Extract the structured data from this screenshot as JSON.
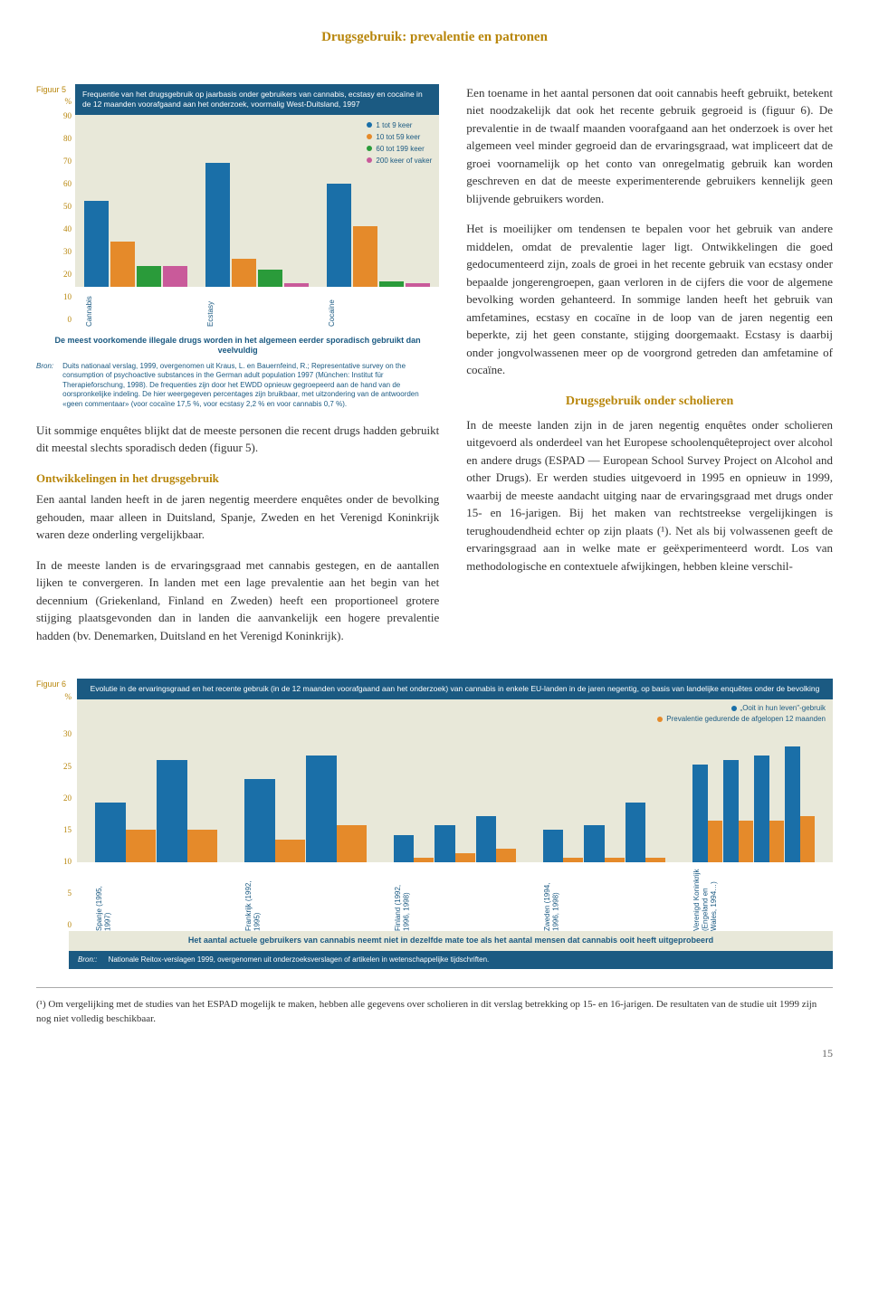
{
  "page_title": "Drugsgebruik: prevalentie en patronen",
  "fig5": {
    "label": "Figuur 5",
    "ylabel": "%",
    "title": "Frequentie van het drugsgebruik op jaarbasis onder gebruikers van cannabis, ecstasy en cocaïne in de 12 maanden voorafgaand aan het onderzoek, voormalig West-Duitsland, 1997",
    "ymax": 100,
    "yticks": [
      "90",
      "80",
      "70",
      "60",
      "50",
      "40",
      "30",
      "20",
      "10",
      "0"
    ],
    "legend": [
      {
        "label": "1 tot 9 keer",
        "color": "#1a6fa8"
      },
      {
        "label": "10 tot 59 keer",
        "color": "#e58a2a"
      },
      {
        "label": "60 tot 199 keer",
        "color": "#2a9b3a"
      },
      {
        "label": "200 keer of vaker",
        "color": "#c95a9a"
      }
    ],
    "groups": [
      {
        "label": "Cannabis",
        "values": [
          50,
          26,
          12,
          12
        ],
        "colors": [
          "#1a6fa8",
          "#e58a2a",
          "#2a9b3a",
          "#c95a9a"
        ]
      },
      {
        "label": "Ecstasy",
        "values": [
          72,
          16,
          10,
          2
        ],
        "colors": [
          "#1a6fa8",
          "#e58a2a",
          "#2a9b3a",
          "#c95a9a"
        ]
      },
      {
        "label": "Cocaïne",
        "values": [
          60,
          35,
          3,
          2
        ],
        "colors": [
          "#1a6fa8",
          "#e58a2a",
          "#2a9b3a",
          "#c95a9a"
        ]
      }
    ],
    "caption": "De meest voorkomende illegale drugs worden in het algemeen eerder sporadisch gebruikt dan veelvuldig",
    "bron_label": "Bron:",
    "bron": "Duits nationaal verslag, 1999, overgenomen uit Kraus, L. en Bauernfeind, R.; Representative survey on the consumption of psychoactive substances in the German adult population 1997 (München: Institut für Therapieforschung, 1998). De frequenties zijn door het EWDD opnieuw gegroepeerd aan de hand van de oorspronkelijke indeling. De hier weergegeven percentages zijn bruikbaar, met uitzondering van de antwoorden «geen commentaar» (voor cocaïne 17,5 %, voor ecstasy 2,2 % en voor cannabis 0,7 %)."
  },
  "left_para_1": "Uit sommige enquêtes blijkt dat de meeste personen die recent drugs hadden gebruikt dit meestal slechts sporadisch deden (figuur 5).",
  "left_subhead": "Ontwikkelingen in het drugsgebruik",
  "left_para_2": "Een aantal landen heeft in de jaren negentig meerdere enquêtes onder de bevolking gehouden, maar alleen in Duitsland, Spanje, Zweden en het Verenigd Koninkrijk waren deze onderling vergelijkbaar.",
  "left_para_3": "In de meeste landen is de ervaringsgraad met cannabis gestegen, en de aantallen lijken te convergeren. In landen met een lage prevalentie aan het begin van het decennium (Griekenland, Finland en Zweden) heeft een proportioneel grotere stijging plaatsgevonden dan in landen die aanvankelijk een hogere prevalentie hadden (bv. Denemarken, Duitsland en het Verenigd Koninkrijk).",
  "right_para_1": "Een toename in het aantal personen dat ooit cannabis heeft gebruikt, betekent niet noodzakelijk dat ook het recente gebruik gegroeid is (figuur 6). De prevalentie in de twaalf maanden voorafgaand aan het onderzoek is over het algemeen veel minder gegroeid dan de ervaringsgraad, wat impliceert dat de groei voornamelijk op het conto van onregelmatig gebruik kan worden geschreven en dat de meeste experimenterende gebruikers kennelijk geen blijvende gebruikers worden.",
  "right_para_2": "Het is moeilijker om tendensen te bepalen voor het gebruik van andere middelen, omdat de prevalentie lager ligt. Ontwikkelingen die goed gedocumenteerd zijn, zoals de groei in het recente gebruik van ecstasy onder bepaalde jongerengroepen, gaan verloren in de cijfers die voor de algemene bevolking worden gehanteerd. In sommige landen heeft het gebruik van amfetamines, ecstasy en cocaïne in de loop van de jaren negentig een beperkte, zij het geen constante, stijging doorgemaakt. Ecstasy is daarbij onder jongvolwassenen meer op de voorgrond getreden dan amfetamine of cocaïne.",
  "right_section_head": "Drugsgebruik onder scholieren",
  "right_para_3": "In de meeste landen zijn in de jaren negentig enquêtes onder scholieren uitgevoerd als onderdeel van het Europese schoolenquêteproject over alcohol en andere drugs (ESPAD — European School Survey Project on Alcohol and other Drugs). Er werden studies uitgevoerd in 1995 en opnieuw in 1999, waarbij de meeste aandacht uitging naar de ervaringsgraad met drugs onder 15- en 16-jarigen. Bij het maken van rechtstreekse vergelijkingen is terughoudendheid echter op zijn plaats (¹). Net als bij volwassenen geeft de ervaringsgraad aan in welke mate er geëxperimenteerd wordt. Los van methodologische en contextuele afwijkingen, hebben kleine verschil-",
  "fig6": {
    "label": "Figuur 6",
    "ylabel": "%",
    "title": "Evolutie in de ervaringsgraad en het recente gebruik (in de 12 maanden voorafgaand aan het onderzoek) van cannabis in enkele EU-landen in de jaren negentig, op basis van landelijke enquêtes onder de bevolking",
    "ymax": 35,
    "yticks": [
      "30",
      "25",
      "20",
      "15",
      "10",
      "5",
      "0"
    ],
    "legend": [
      {
        "label": "„Ooit in hun leven\"-gebruik",
        "color": "#1a6fa8"
      },
      {
        "label": "Prevalentie gedurende de afgelopen 12 maanden",
        "color": "#e58a2a"
      }
    ],
    "bar_colors": {
      "ever": "#1a6fa8",
      "recent": "#e58a2a"
    },
    "groups": [
      {
        "label": "Spanje (1995, 1997)",
        "pairs": [
          [
            13,
            7
          ],
          [
            22,
            7
          ]
        ]
      },
      {
        "label": "Frankrijk (1992, 1995)",
        "pairs": [
          [
            18,
            5
          ],
          [
            23,
            8
          ]
        ]
      },
      {
        "label": "Finland (1992, 1996, 1998)",
        "pairs": [
          [
            6,
            1
          ],
          [
            8,
            2
          ],
          [
            10,
            3
          ]
        ]
      },
      {
        "label": "Zweden (1994, 1996, 1998)",
        "pairs": [
          [
            7,
            1
          ],
          [
            8,
            1
          ],
          [
            13,
            1
          ]
        ]
      },
      {
        "label": "Verenigd Koninkrijk (Engeland en Wales, 1994…)",
        "pairs": [
          [
            21,
            9
          ],
          [
            22,
            9
          ],
          [
            23,
            9
          ],
          [
            25,
            10
          ]
        ]
      }
    ],
    "caption": "Het aantal actuele gebruikers van cannabis neemt niet in dezelfde mate toe als het aantal mensen dat cannabis ooit heeft uitgeprobeerd",
    "bron_label": "Bron::",
    "bron": "Nationale Reitox-verslagen 1999, overgenomen uit onderzoeksverslagen of artikelen in wetenschappelijke tijdschriften."
  },
  "footnote": "(¹) Om vergelijking met de studies van het ESPAD mogelijk te maken, hebben alle gegevens over scholieren in dit verslag betrekking op 15- en 16-jarigen. De resultaten van de studie uit 1999 zijn nog niet volledig beschikbaar.",
  "pagenum": "15"
}
